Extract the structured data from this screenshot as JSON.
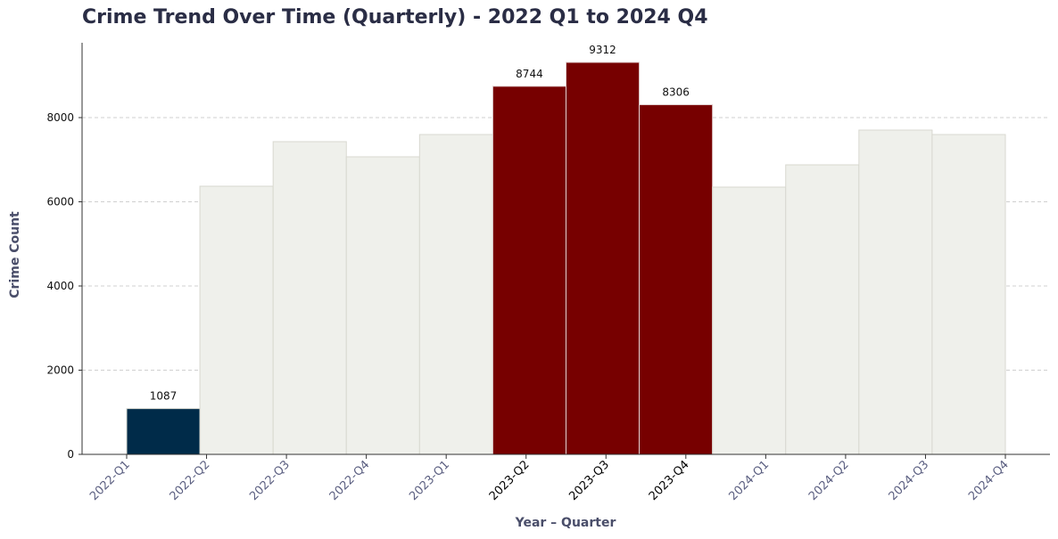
{
  "chart_data": {
    "type": "bar",
    "title": "Crime Trend Over Time (Quarterly) - 2022 Q1 to 2024 Q4",
    "x_label": "Year – Quarter",
    "y_label": "Crime Count",
    "categories": [
      "2022-Q1",
      "2022-Q2",
      "2022-Q3",
      "2022-Q4",
      "2023-Q1",
      "2023-Q2",
      "2023-Q3",
      "2023-Q4",
      "2024-Q1",
      "2024-Q2",
      "2024-Q3",
      "2024-Q4"
    ],
    "values": [
      1087,
      6370,
      7429,
      7069,
      7598,
      8744,
      9312,
      8306,
      6349,
      6878,
      7704,
      7598
    ],
    "value_labels": [
      "1087",
      null,
      null,
      null,
      null,
      "8744",
      "9312",
      "8306",
      null,
      null,
      null,
      null
    ],
    "colors": [
      "#002b49",
      "#eff0eb",
      "#eff0eb",
      "#eff0eb",
      "#eff0eb",
      "#770000",
      "#770000",
      "#770000",
      "#eff0eb",
      "#eff0eb",
      "#eff0eb",
      "#eff0eb"
    ],
    "highlight_color": "#770000",
    "ylim": [
      0,
      9778
    ],
    "yticks": [
      0,
      2000,
      4000,
      6000,
      8000
    ],
    "grid": true
  }
}
